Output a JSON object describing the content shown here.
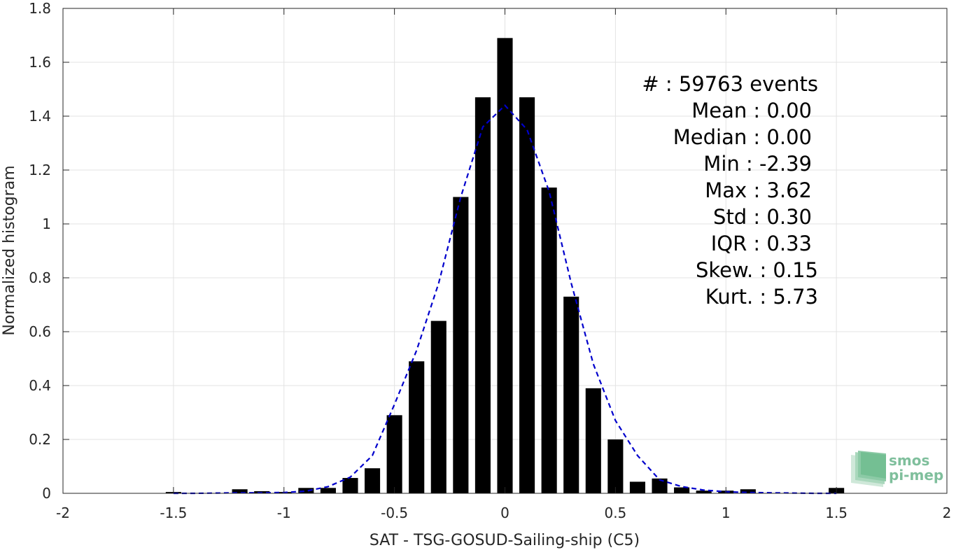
{
  "chart_data": {
    "type": "bar",
    "xlabel": "SAT - TSG-GOSUD-Sailing-ship (C5)",
    "ylabel": "Normalized histogram",
    "xlim": [
      -2,
      2
    ],
    "ylim": [
      0,
      1.8
    ],
    "grid": true,
    "xticks": [
      -2,
      -1.5,
      -1,
      -0.5,
      0,
      0.5,
      1,
      1.5,
      2
    ],
    "xtick_labels": [
      "-2",
      "-1.5",
      "-1",
      "-0.5",
      "0",
      "0.5",
      "1",
      "1.5",
      "2"
    ],
    "yticks": [
      0,
      0.2,
      0.4,
      0.6,
      0.8,
      1,
      1.2,
      1.4,
      1.6,
      1.8
    ],
    "ytick_labels": [
      "0",
      "0.2",
      "0.4",
      "0.6",
      "0.8",
      "1",
      "1.2",
      "1.4",
      "1.6",
      "1.8"
    ],
    "bar_width": 0.07,
    "bar_color": "#000000",
    "bars": {
      "x": [
        -1.5,
        -1.4,
        -1.3,
        -1.2,
        -1.1,
        -1.0,
        -0.9,
        -0.8,
        -0.7,
        -0.6,
        -0.5,
        -0.4,
        -0.3,
        -0.2,
        -0.1,
        0.0,
        0.1,
        0.2,
        0.3,
        0.4,
        0.5,
        0.6,
        0.7,
        0.8,
        0.9,
        1.0,
        1.1,
        1.2,
        1.3,
        1.4,
        1.5
      ],
      "values": [
        0.005,
        0.0,
        0.0,
        0.015,
        0.008,
        0.005,
        0.02,
        0.02,
        0.057,
        0.093,
        0.29,
        0.49,
        0.64,
        1.1,
        1.47,
        1.69,
        1.47,
        1.135,
        0.73,
        0.39,
        0.2,
        0.043,
        0.055,
        0.022,
        0.01,
        0.01,
        0.015,
        0.0,
        0.0,
        0.0,
        0.02
      ]
    },
    "fit": {
      "style": "dashed",
      "color": "#0000cc",
      "x": [
        -1.5,
        -1.4,
        -1.3,
        -1.2,
        -1.1,
        -1.0,
        -0.9,
        -0.8,
        -0.7,
        -0.6,
        -0.5,
        -0.4,
        -0.3,
        -0.2,
        -0.1,
        0.0,
        0.1,
        0.2,
        0.3,
        0.4,
        0.5,
        0.6,
        0.7,
        0.8,
        0.9,
        1.0,
        1.1,
        1.2,
        1.3,
        1.4,
        1.5
      ],
      "y": [
        0.0,
        0.0,
        0.001,
        0.002,
        0.002,
        0.003,
        0.008,
        0.025,
        0.06,
        0.14,
        0.33,
        0.53,
        0.78,
        1.1,
        1.36,
        1.44,
        1.35,
        1.12,
        0.78,
        0.48,
        0.27,
        0.14,
        0.05,
        0.025,
        0.012,
        0.006,
        0.003,
        0.002,
        0.001,
        0.0,
        0.0
      ]
    }
  },
  "stats": [
    {
      "label": "#  : 59763 events"
    },
    {
      "label": "Mean : 0.00"
    },
    {
      "label": "Median : 0.00"
    },
    {
      "label": "Min : -2.39"
    },
    {
      "label": "Max : 3.62"
    },
    {
      "label": "Std : 0.30"
    },
    {
      "label": "IQR : 0.33"
    },
    {
      "label": "Skew. : 0.15"
    },
    {
      "label": "Kurt. : 5.73"
    }
  ],
  "logo": {
    "line1": "smos",
    "line2": "pi-mep"
  }
}
